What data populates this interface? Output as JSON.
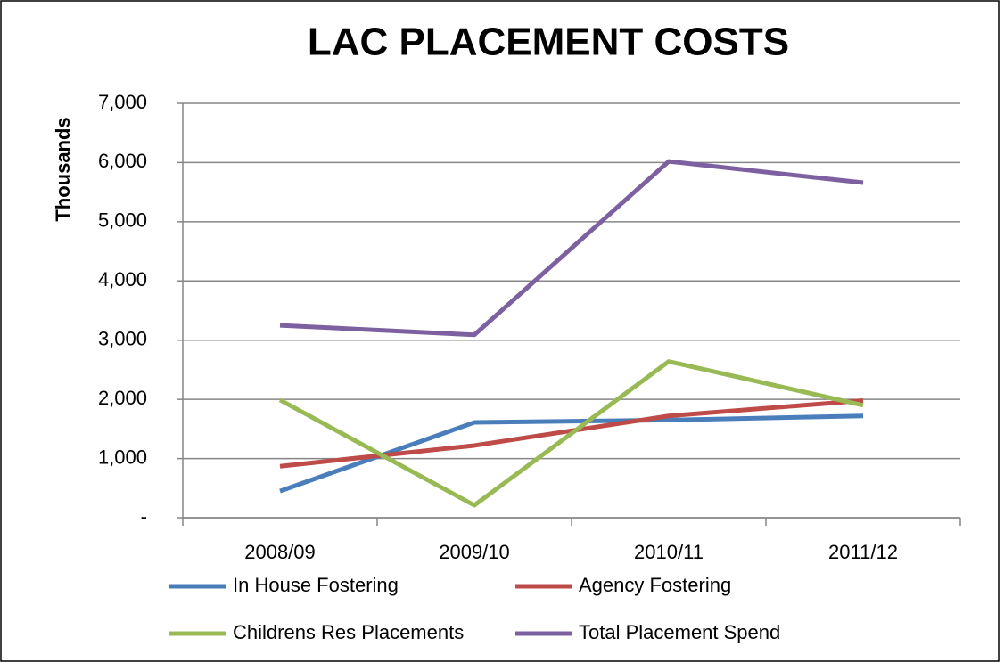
{
  "chart_data": {
    "type": "line",
    "title": "LAC PLACEMENT COSTS",
    "y_label": "Thousands",
    "categories": [
      "2008/09",
      "2009/10",
      "2010/11",
      "2011/12"
    ],
    "series": [
      {
        "name": "In House Fostering",
        "color": "#4a7ebb",
        "values": [
          450,
          1610,
          1650,
          1720
        ]
      },
      {
        "name": "Agency Fostering",
        "color": "#be4b48",
        "values": [
          870,
          1220,
          1720,
          1980
        ]
      },
      {
        "name": "Childrens Res Placements",
        "color": "#98b954",
        "values": [
          1990,
          210,
          2640,
          1900
        ]
      },
      {
        "name": "Total Placement Spend",
        "color": "#7d60a0",
        "values": [
          3250,
          3090,
          6020,
          5660
        ]
      }
    ],
    "ylim": [
      0,
      7000
    ],
    "yticks": [
      {
        "value": 0,
        "label": "-"
      },
      {
        "value": 1000,
        "label": "1,000"
      },
      {
        "value": 2000,
        "label": "2,000"
      },
      {
        "value": 3000,
        "label": "3,000"
      },
      {
        "value": 4000,
        "label": "4,000"
      },
      {
        "value": 5000,
        "label": "5,000"
      },
      {
        "value": 6000,
        "label": "6,000"
      },
      {
        "value": 7000,
        "label": "7,000"
      }
    ],
    "grid": true,
    "legend": "bottom"
  }
}
